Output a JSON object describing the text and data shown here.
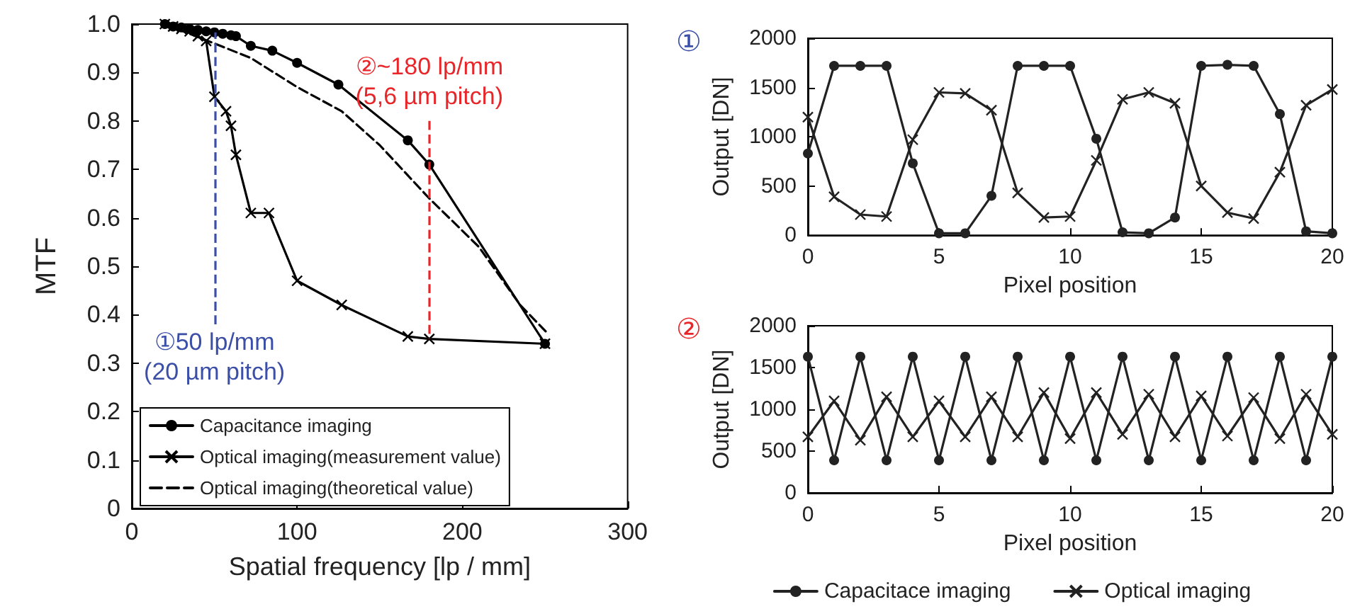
{
  "chart_data": [
    {
      "type": "line",
      "xlabel": "Spatial frequency [lp / mm]",
      "ylabel": "MTF",
      "xlim": [
        0,
        300
      ],
      "xticks": [
        0,
        100,
        200,
        300
      ],
      "ylim": [
        0,
        1
      ],
      "yticks": [
        0,
        0.1,
        0.2,
        0.3,
        0.4,
        0.5,
        0.6,
        0.7,
        0.8,
        0.9,
        {
          "value": 1,
          "label": "1.0"
        }
      ],
      "legend": "bottom left",
      "series": [
        {
          "name": "Capacitance imaging",
          "color": "#000000",
          "marker": "circle",
          "line_style": "solid",
          "x": [
            20,
            25,
            30,
            35,
            40,
            45,
            50,
            55,
            60,
            63,
            72,
            85,
            100,
            125,
            167,
            180,
            250
          ],
          "values": [
            1.0,
            0.995,
            0.993,
            0.99,
            0.988,
            0.985,
            0.983,
            0.98,
            0.977,
            0.975,
            0.955,
            0.945,
            0.92,
            0.875,
            0.76,
            0.71,
            0.34
          ]
        },
        {
          "name": "Optical imaging(measurement value)",
          "color": "#000000",
          "marker": "cross",
          "line_style": "solid",
          "x": [
            20,
            25,
            30,
            35,
            40,
            45,
            50,
            57,
            60,
            63,
            72,
            83,
            100,
            127,
            167,
            180,
            250
          ],
          "values": [
            1.0,
            0.995,
            0.99,
            0.985,
            0.975,
            0.965,
            0.85,
            0.82,
            0.79,
            0.73,
            0.61,
            0.61,
            0.47,
            0.42,
            0.355,
            0.35,
            0.34
          ]
        },
        {
          "name": "Optical imaging(theoretical value)",
          "color": "#000000",
          "marker": "none",
          "line_style": "dashed",
          "x": [
            20,
            50,
            72,
            100,
            127,
            150,
            180,
            210,
            235,
            252
          ],
          "values": [
            1.0,
            0.96,
            0.93,
            0.87,
            0.82,
            0.75,
            0.64,
            0.54,
            0.42,
            0.36
          ]
        }
      ],
      "ref_lines": [
        {
          "axis": "x",
          "value": 50,
          "color": "#3b4fa8",
          "line_style": "dashed"
        },
        {
          "axis": "x",
          "value": 180,
          "color": "#e8262a",
          "line_style": "dashed"
        }
      ],
      "annotations": [
        {
          "text": "①50 lp/mm\n(20 µm pitch)",
          "x": 50,
          "y": 0.38
        },
        {
          "text": "②~180 lp/mm\n(5,6 µm pitch)",
          "x": 180,
          "y": 0.8
        }
      ]
    },
    {
      "type": "line",
      "title": "①",
      "xlabel": "Pixel position",
      "ylabel": "Output [DN]",
      "xlim": [
        0,
        20
      ],
      "xticks": [
        0,
        5,
        10,
        15,
        20
      ],
      "ylim": [
        0,
        2000
      ],
      "yticks": [
        0,
        500,
        1000,
        1500,
        2000
      ],
      "x": [
        0,
        1,
        2,
        3,
        4,
        5,
        6,
        7,
        8,
        9,
        10,
        11,
        12,
        13,
        14,
        15,
        16,
        17,
        18,
        19,
        20
      ],
      "series": [
        {
          "color": "#222222",
          "marker": "circle",
          "values": [
            830,
            1720,
            1720,
            1720,
            730,
            20,
            20,
            400,
            1720,
            1720,
            1720,
            980,
            30,
            20,
            180,
            1720,
            1730,
            1720,
            1230,
            40,
            20
          ]
        },
        {
          "color": "#222222",
          "marker": "cross",
          "values": [
            1200,
            390,
            210,
            190,
            970,
            1450,
            1440,
            1270,
            430,
            180,
            190,
            760,
            1380,
            1450,
            1340,
            500,
            230,
            170,
            640,
            1320,
            1480
          ]
        }
      ]
    },
    {
      "type": "line",
      "title": "②",
      "xlabel": "Pixel position",
      "ylabel": "Output [DN]",
      "xlim": [
        0,
        20
      ],
      "xticks": [
        0,
        5,
        10,
        15,
        20
      ],
      "ylim": [
        0,
        2000
      ],
      "yticks": [
        0,
        500,
        1000,
        1500,
        2000
      ],
      "legend": "bottom",
      "x": [
        0,
        1,
        2,
        3,
        4,
        5,
        6,
        7,
        8,
        9,
        10,
        11,
        12,
        13,
        14,
        15,
        16,
        17,
        18,
        19,
        20
      ],
      "series": [
        {
          "name": "Capacitace imaging",
          "color": "#222222",
          "marker": "circle",
          "values": [
            1630,
            390,
            1630,
            390,
            1630,
            390,
            1630,
            390,
            1630,
            390,
            1630,
            390,
            1630,
            390,
            1630,
            390,
            1630,
            390,
            1630,
            390,
            1630
          ]
        },
        {
          "name": "Optical imaging",
          "color": "#222222",
          "marker": "cross",
          "values": [
            670,
            1100,
            630,
            1150,
            670,
            1100,
            670,
            1150,
            670,
            1200,
            650,
            1200,
            700,
            1180,
            670,
            1160,
            680,
            1140,
            650,
            1180,
            700
          ]
        }
      ]
    }
  ]
}
